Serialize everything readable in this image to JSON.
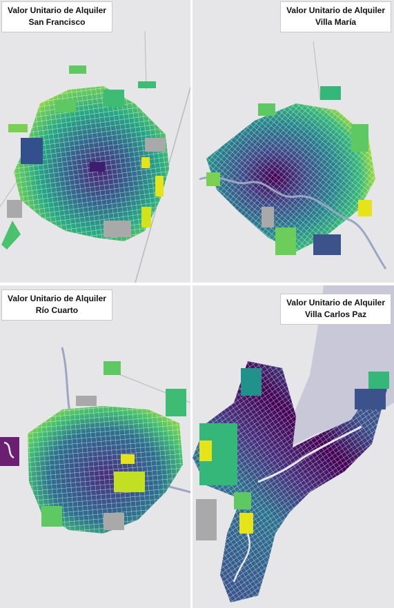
{
  "panels": [
    {
      "id": "san-francisco",
      "title": "Valor Unitario de Alquiler",
      "city": "San Francisco"
    },
    {
      "id": "villa-maria",
      "title": "Valor Unitario de Alquiler",
      "city": "Villa María"
    },
    {
      "id": "rio-cuarto",
      "title": "Valor Unitario de Alquiler",
      "city": "Río Cuarto"
    },
    {
      "id": "villa-carlos-paz",
      "title": "Valor Unitario de Alquiler",
      "city": "Villa Carlos Paz"
    }
  ],
  "colors": {
    "background": "#e6e6e8",
    "road": "#b9b9be",
    "river": "#9aa7c4",
    "lake": "#c9c8d9",
    "grey_block": "#a9a9a9",
    "scale": [
      "#440154",
      "#3b528b",
      "#21918c",
      "#5ec962",
      "#fde725"
    ]
  }
}
